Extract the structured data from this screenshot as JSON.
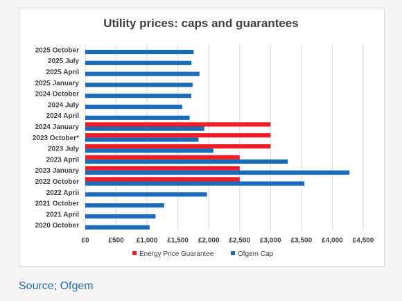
{
  "source_note": "Source; Ofgem",
  "chart_data": {
    "type": "bar",
    "orientation": "horizontal",
    "title": "Utility prices: caps and guarantees",
    "xlabel": "",
    "ylabel": "",
    "xlim": [
      0,
      4500
    ],
    "grid": true,
    "legend_position": "bottom",
    "x_ticks": [
      "£0",
      "£500",
      "£1,000",
      "£1,500",
      "£2,000",
      "£2,500",
      "£3,000",
      "£3,500",
      "£4,000",
      "£4,500"
    ],
    "categories": [
      "2025 October",
      "2025 July",
      "2025 April",
      "2025 January",
      "2024 October",
      "2024 July",
      "2024 April",
      "2024 January",
      "2023 October*",
      "2023 July",
      "2023 April",
      "2023 January",
      "2022 October",
      "2022 Aprii",
      "2021  October",
      "2021 April",
      "2020 October"
    ],
    "series": [
      {
        "name": "Energy Price Guarantee",
        "color": "#ee1c25",
        "values": [
          null,
          null,
          null,
          null,
          null,
          null,
          null,
          3000,
          3000,
          3000,
          2500,
          2500,
          2500,
          null,
          null,
          null,
          null
        ]
      },
      {
        "name": "Ofgem Cap",
        "color": "#1c6bb8",
        "values": [
          1755,
          1720,
          1850,
          1738,
          1717,
          1568,
          1690,
          1928,
          1834,
          2074,
          3280,
          4279,
          3549,
          1971,
          1277,
          1138,
          1042
        ]
      }
    ]
  }
}
